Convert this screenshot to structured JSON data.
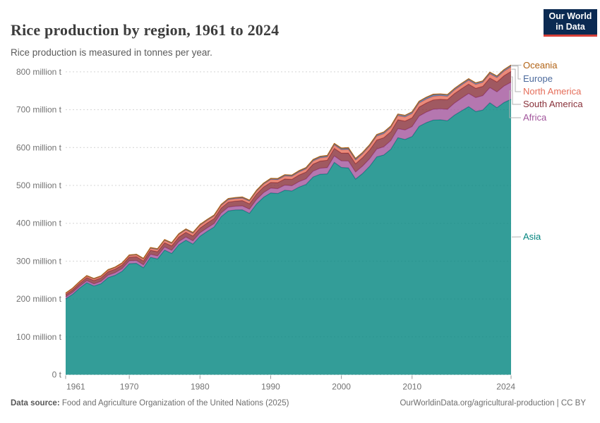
{
  "header": {
    "title": "Rice production by region, 1961 to 2024",
    "subtitle": "Rice production is measured in tonnes per year.",
    "logo": {
      "line1": "Our World",
      "line2": "in Data",
      "bg_color": "#0b2a52",
      "accent_color": "#d63f38"
    }
  },
  "footer": {
    "datasource_label": "Data source:",
    "datasource_text": " Food and Agriculture Organization of the United Nations (2025)",
    "link_text": "OurWorldinData.org/agricultural-production | CC BY"
  },
  "chart_data": {
    "type": "area",
    "stacking": "stacked",
    "title": "Rice production by region, 1961 to 2024",
    "unit": "tonnes per year",
    "grid": "dashed-horizontal",
    "legend_position": "right",
    "legend_order_top_to_bottom": [
      "Oceania",
      "Europe",
      "North America",
      "South America",
      "Africa",
      "Asia"
    ],
    "xlim": [
      1961,
      2024
    ],
    "ylim": [
      0,
      830
    ],
    "x_ticks": [
      1961,
      1970,
      1980,
      1990,
      2000,
      2010,
      2024
    ],
    "y_ticks": [
      0,
      100,
      200,
      300,
      400,
      500,
      600,
      700,
      800
    ],
    "y_tick_labels": [
      "0 t",
      "100 million t",
      "200 million t",
      "300 million t",
      "400 million t",
      "500 million t",
      "600 million t",
      "700 million t",
      "800 million t"
    ],
    "x": [
      1961,
      1962,
      1963,
      1964,
      1965,
      1966,
      1967,
      1968,
      1969,
      1970,
      1971,
      1972,
      1973,
      1974,
      1975,
      1976,
      1977,
      1978,
      1979,
      1980,
      1981,
      1982,
      1983,
      1984,
      1985,
      1986,
      1987,
      1988,
      1989,
      1990,
      1991,
      1992,
      1993,
      1994,
      1995,
      1996,
      1997,
      1998,
      1999,
      2000,
      2001,
      2002,
      2003,
      2004,
      2005,
      2006,
      2007,
      2008,
      2009,
      2010,
      2011,
      2012,
      2013,
      2014,
      2015,
      2016,
      2017,
      2018,
      2019,
      2020,
      2021,
      2022,
      2023,
      2024
    ],
    "series": [
      {
        "name": "Asia",
        "color": "#00847E",
        "values": [
          200.4,
          212.5,
          229.0,
          243.1,
          234.3,
          240.5,
          256.5,
          262.6,
          273.3,
          293.3,
          294.2,
          282.5,
          310.0,
          305.9,
          329.2,
          320.3,
          343.4,
          355.3,
          345.2,
          365.8,
          378.5,
          390.1,
          417.5,
          432.8,
          435.2,
          435.5,
          426.2,
          451.1,
          468.8,
          480.2,
          478.5,
          487.4,
          485.3,
          495.6,
          502.6,
          522.4,
          529.7,
          530.5,
          561.1,
          547.4,
          546.4,
          516.7,
          531.7,
          550.6,
          575.4,
          580.5,
          595.8,
          626.1,
          621.4,
          629.3,
          656.3,
          665.8,
          672.7,
          673.3,
          671.0,
          685.9,
          697.2,
          708.0,
          695.4,
          699.1,
          718.5,
          705.4,
          719.0,
          727.6
        ]
      },
      {
        "name": "Africa",
        "color": "#A2559C",
        "values": [
          4.9,
          5.1,
          5.3,
          5.4,
          5.6,
          6.0,
          6.3,
          6.7,
          7.0,
          7.4,
          7.5,
          7.6,
          7.8,
          7.9,
          8.0,
          8.1,
          8.2,
          8.4,
          8.5,
          8.6,
          8.9,
          9.1,
          9.4,
          9.6,
          9.9,
          10.4,
          11.0,
          11.5,
          12.1,
          12.6,
          13.0,
          13.4,
          13.8,
          14.2,
          14.6,
          15.2,
          15.7,
          16.3,
          16.8,
          17.4,
          18.0,
          18.6,
          19.3,
          19.9,
          20.5,
          21.6,
          22.7,
          23.8,
          24.9,
          26.0,
          26.8,
          27.6,
          28.4,
          29.2,
          30.0,
          31.6,
          33.2,
          34.8,
          36.4,
          38.0,
          39.8,
          41.5,
          43.3,
          45.0
        ]
      },
      {
        "name": "South America",
        "color": "#883039",
        "values": [
          6.1,
          6.8,
          7.5,
          8.2,
          8.9,
          9.1,
          9.2,
          9.4,
          9.5,
          9.7,
          10.1,
          10.4,
          10.8,
          11.1,
          11.5,
          11.8,
          12.1,
          12.4,
          12.7,
          13.0,
          13.1,
          13.2,
          13.4,
          13.5,
          13.6,
          14.0,
          14.3,
          14.6,
          15.0,
          15.3,
          15.9,
          16.4,
          17.0,
          17.5,
          18.1,
          18.6,
          19.1,
          19.6,
          20.1,
          20.6,
          21.3,
          22.0,
          22.6,
          23.3,
          24.0,
          23.9,
          23.8,
          23.7,
          23.6,
          23.5,
          23.9,
          24.3,
          24.7,
          25.1,
          25.5,
          25.3,
          25.1,
          24.9,
          24.7,
          24.5,
          25.5,
          26.5,
          27.5,
          28.5
        ]
      },
      {
        "name": "North America",
        "color": "#E56E5A",
        "values": [
          2.5,
          2.8,
          3.0,
          3.3,
          3.5,
          3.6,
          3.6,
          3.7,
          3.7,
          3.8,
          4.2,
          4.6,
          5.0,
          5.4,
          5.8,
          6.0,
          6.1,
          6.3,
          6.4,
          6.6,
          6.5,
          6.4,
          6.3,
          6.2,
          6.1,
          6.3,
          6.5,
          6.7,
          6.9,
          7.1,
          7.3,
          7.4,
          7.6,
          7.7,
          7.9,
          8.1,
          8.2,
          8.4,
          8.5,
          8.7,
          9.0,
          9.3,
          9.5,
          9.8,
          10.1,
          10.3,
          10.5,
          10.6,
          10.8,
          11.0,
          10.5,
          10.1,
          9.6,
          9.2,
          8.7,
          9.0,
          9.3,
          9.7,
          10.0,
          10.3,
          10.7,
          11.1,
          11.6,
          12.0
        ]
      },
      {
        "name": "Europe",
        "color": "#4C6A9C",
        "values": [
          1.5,
          1.5,
          1.6,
          1.6,
          1.6,
          1.7,
          1.7,
          1.7,
          1.8,
          1.8,
          1.8,
          1.9,
          1.9,
          2.0,
          2.0,
          2.0,
          2.1,
          2.1,
          2.2,
          2.2,
          2.2,
          2.2,
          2.3,
          2.3,
          2.3,
          2.3,
          2.3,
          2.4,
          2.4,
          2.4,
          2.5,
          2.6,
          2.6,
          2.7,
          2.8,
          2.9,
          3.0,
          3.0,
          3.1,
          3.2,
          3.3,
          3.4,
          3.6,
          3.7,
          3.8,
          3.9,
          4.0,
          4.2,
          4.3,
          4.4,
          4.4,
          4.3,
          4.3,
          4.2,
          4.2,
          4.1,
          4.1,
          4.0,
          4.0,
          4.0,
          4.0,
          4.1,
          4.1,
          4.2
        ]
      },
      {
        "name": "Oceania",
        "color": "#B16214",
        "values": [
          0.2,
          0.2,
          0.2,
          0.2,
          0.2,
          0.2,
          0.25,
          0.25,
          0.3,
          0.3,
          0.3,
          0.35,
          0.4,
          0.45,
          0.5,
          0.55,
          0.6,
          0.65,
          0.7,
          0.7,
          0.75,
          0.8,
          0.85,
          0.9,
          0.9,
          0.9,
          0.95,
          0.95,
          1.0,
          1.0,
          1.0,
          1.05,
          1.1,
          1.15,
          1.2,
          1.25,
          1.3,
          1.35,
          1.4,
          1.4,
          1.8,
          1.3,
          0.4,
          0.6,
          0.6,
          1.0,
          0.2,
          0.1,
          0.1,
          0.3,
          0.7,
          0.9,
          1.2,
          0.8,
          0.7,
          0.3,
          0.8,
          0.6,
          0.5,
          0.1,
          0.5,
          0.4,
          0.5,
          0.7
        ]
      }
    ]
  }
}
